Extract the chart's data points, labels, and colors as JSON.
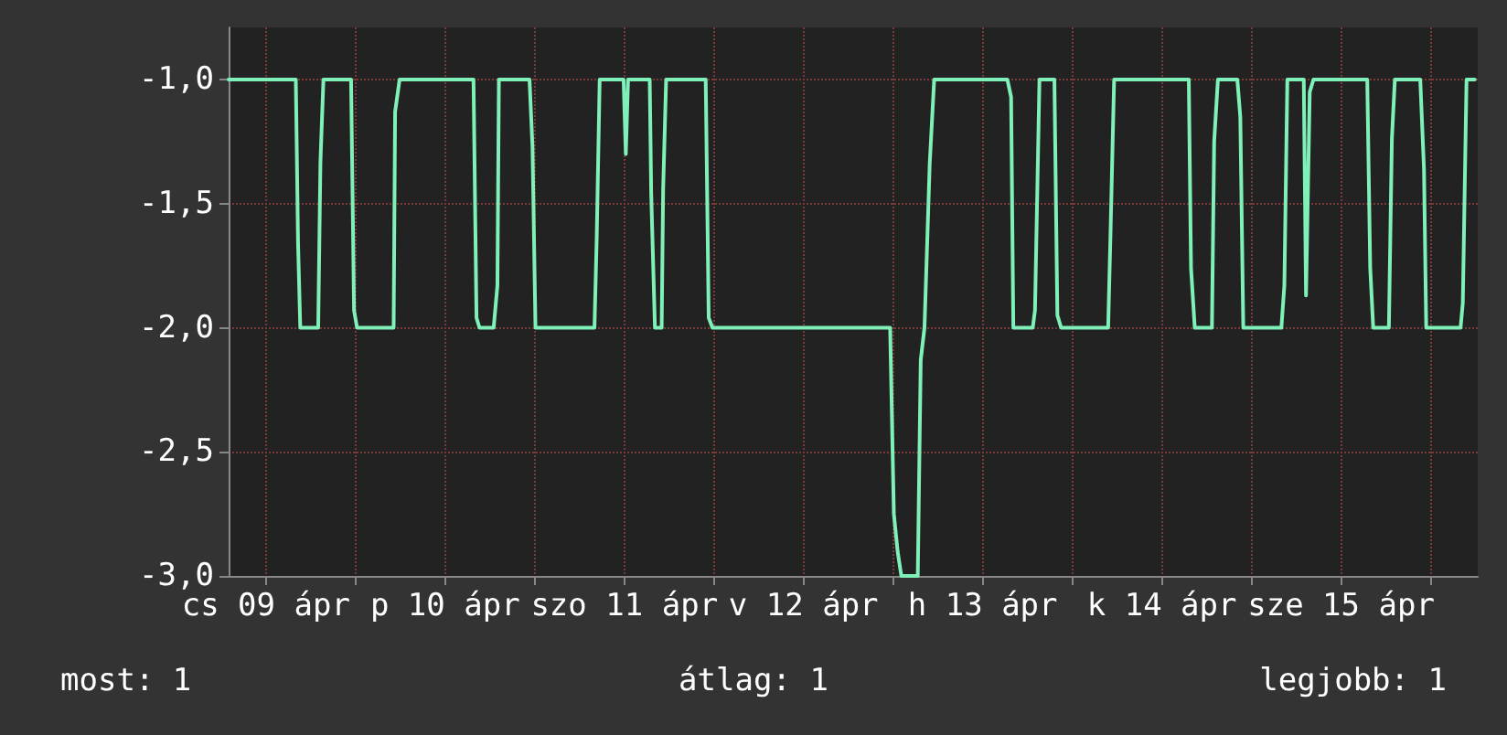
{
  "chart_data": {
    "type": "line",
    "marker": "none",
    "line_style": "solid",
    "grid": true,
    "xlim": [
      "--04-09T07:00",
      "--04-16T06:18"
    ],
    "ylim": [
      -3,
      -0.79
    ],
    "xticks": [
      {
        "value": "--04-09T12:00",
        "label": "cs 09 ápr"
      },
      {
        "value": "--04-10",
        "label": null
      },
      {
        "value": "--04-10T12:00",
        "label": "p 10 ápr"
      },
      {
        "value": "--04-11",
        "label": null
      },
      {
        "value": "--04-11T12:00",
        "label": "szo 11 ápr"
      },
      {
        "value": "--04-12",
        "label": null
      },
      {
        "value": "--04-12T12:00",
        "label": "v 12 ápr"
      },
      {
        "value": "--04-13",
        "label": null
      },
      {
        "value": "--04-13T12:00",
        "label": "h 13 ápr"
      },
      {
        "value": "--04-14",
        "label": null
      },
      {
        "value": "--04-14T12:00",
        "label": "k 14 ápr"
      },
      {
        "value": "--04-15",
        "label": null
      },
      {
        "value": "--04-15T12:00",
        "label": "sze 15 ápr"
      },
      {
        "value": "--04-16",
        "label": null
      }
    ],
    "yticks": [
      {
        "value": -3,
        "label": "-3,0"
      },
      {
        "value": -2.5,
        "label": "-2,5"
      },
      {
        "value": -2,
        "label": "-2,0"
      },
      {
        "value": -1.5,
        "label": "-1,5"
      },
      {
        "value": -1,
        "label": "-1,0"
      }
    ],
    "annotations": [
      "most: 1",
      "átlag: 1",
      "legjobb: 1"
    ],
    "series": [
      {
        "color": "#7ff0b8",
        "x": [
          "--04-09T07:00",
          "--04-09T16:00",
          "--04-09T16:18",
          "--04-09T16:36",
          "--04-09T19:00",
          "--04-09T19:18",
          "--04-09T19:42",
          "--04-09T23:24",
          "--04-09T23:48",
          "--04-10T00:12",
          "--04-10T05:06",
          "--04-10T05:18",
          "--04-10T05:54",
          "--04-10T15:48",
          "--04-10T16:12",
          "--04-10T16:36",
          "--04-10T18:30",
          "--04-10T19:00",
          "--04-10T19:12",
          "--04-10T23:18",
          "--04-10T23:42",
          "--04-11T00:06",
          "--04-11T08:00",
          "--04-11T08:18",
          "--04-11T08:42",
          "--04-11T11:54",
          "--04-11T12:12",
          "--04-11T12:30",
          "--04-11T15:24",
          "--04-11T15:36",
          "--04-11T16:06",
          "--04-11T17:00",
          "--04-11T17:12",
          "--04-11T17:36",
          "--04-11T22:54",
          "--04-11T23:18",
          "--04-11T23:48",
          "--04-12T23:36",
          "--04-13T00:06",
          "--04-13T00:36",
          "--04-13T01:06",
          "--04-13T03:18",
          "--04-13T03:42",
          "--04-13T04:12",
          "--04-13T04:54",
          "--04-13T05:30",
          "--04-13T15:18",
          "--04-13T15:48",
          "--04-13T16:06",
          "--04-13T18:42",
          "--04-13T19:00",
          "--04-13T19:36",
          "--04-13T21:36",
          "--04-13T22:00",
          "--04-13T22:30",
          "--04-14T04:48",
          "--04-14T05:06",
          "--04-14T05:36",
          "--04-14T15:36",
          "--04-14T15:54",
          "--04-14T16:24",
          "--04-14T18:42",
          "--04-14T19:00",
          "--04-14T19:30",
          "--04-14T22:06",
          "--04-14T22:30",
          "--04-14T22:54",
          "--04-15T04:00",
          "--04-15T04:24",
          "--04-15T04:48",
          "--04-15T07:00",
          "--04-15T07:18",
          "--04-15T07:48",
          "--04-15T08:18",
          "--04-15T15:30",
          "--04-15T15:54",
          "--04-15T16:18",
          "--04-15T18:24",
          "--04-15T18:48",
          "--04-15T19:12",
          "--04-15T22:36",
          "--04-15T23:06",
          "--04-15T23:24",
          "--04-16T04:00",
          "--04-16T04:18",
          "--04-16T04:48",
          "--04-16T05:54"
        ],
        "values": [
          -1,
          -1,
          -1.66,
          -2,
          -2,
          -1.33,
          -1,
          -1,
          -1.93,
          -2,
          -2,
          -1.13,
          -1,
          -1,
          -1.96,
          -2,
          -2,
          -1.83,
          -1,
          -1,
          -1.27,
          -2,
          -2,
          -1.64,
          -1,
          -1,
          -1.3,
          -1,
          -1,
          -1.46,
          -2,
          -2,
          -1.44,
          -1,
          -1,
          -1.96,
          -2,
          -2,
          -2.75,
          -2.9,
          -3,
          -3,
          -2.13,
          -2,
          -1.34,
          -1,
          -1,
          -1.07,
          -2,
          -2,
          -1.93,
          -1,
          -1,
          -1.95,
          -2,
          -2,
          -1.64,
          -1,
          -1,
          -1.76,
          -2,
          -2,
          -1.25,
          -1,
          -1,
          -1.15,
          -2,
          -2,
          -1.83,
          -1,
          -1,
          -1.87,
          -1.05,
          -1,
          -1,
          -1.76,
          -2,
          -2,
          -1.24,
          -1,
          -1,
          -1.36,
          -2,
          -2,
          -1.9,
          -1,
          -1
        ]
      }
    ]
  }
}
